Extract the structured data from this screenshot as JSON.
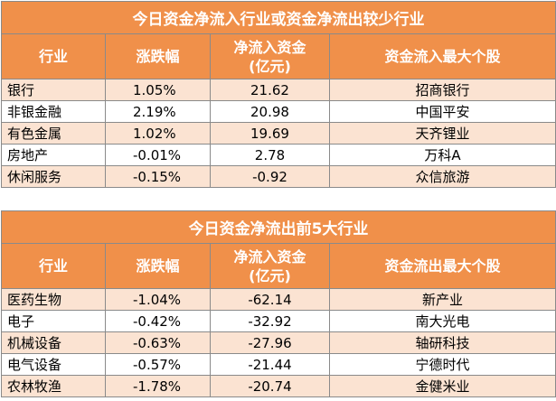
{
  "inflow": {
    "title": "今日资金净流入行业或资金净流出较少行业",
    "headers": [
      "行业",
      "涨跌幅",
      "净流入资金\n(亿元)",
      "资金流入最大个股"
    ],
    "rows": [
      {
        "industry": "银行",
        "change": "1.05%",
        "amount": "21.62",
        "stock": "招商银行"
      },
      {
        "industry": "非银金融",
        "change": "2.19%",
        "amount": "20.98",
        "stock": "中国平安"
      },
      {
        "industry": "有色金属",
        "change": "1.02%",
        "amount": "19.69",
        "stock": "天齐锂业"
      },
      {
        "industry": "房地产",
        "change": "-0.01%",
        "amount": "2.78",
        "stock": "万科A"
      },
      {
        "industry": "休闲服务",
        "change": "-0.15%",
        "amount": "-0.92",
        "stock": "众信旅游"
      }
    ]
  },
  "outflow": {
    "title": "今日资金净流出前5大行业",
    "headers": [
      "行业",
      "涨跌幅",
      "净流入资金\n(亿元)",
      "资金流出最大个股"
    ],
    "rows": [
      {
        "industry": "医药生物",
        "change": "-1.04%",
        "amount": "-62.14",
        "stock": "新产业"
      },
      {
        "industry": "电子",
        "change": "-0.42%",
        "amount": "-32.92",
        "stock": "南大光电"
      },
      {
        "industry": "机械设备",
        "change": "-0.63%",
        "amount": "-27.96",
        "stock": "轴研科技"
      },
      {
        "industry": "电气设备",
        "change": "-0.57%",
        "amount": "-21.44",
        "stock": "宁德时代"
      },
      {
        "industry": "农林牧渔",
        "change": "-1.78%",
        "amount": "-20.74",
        "stock": "金健米业"
      }
    ]
  },
  "colors": {
    "header_bg": "#f0904a",
    "stripe_bg": "#fbe3d2",
    "border": "#8a8a8a"
  }
}
